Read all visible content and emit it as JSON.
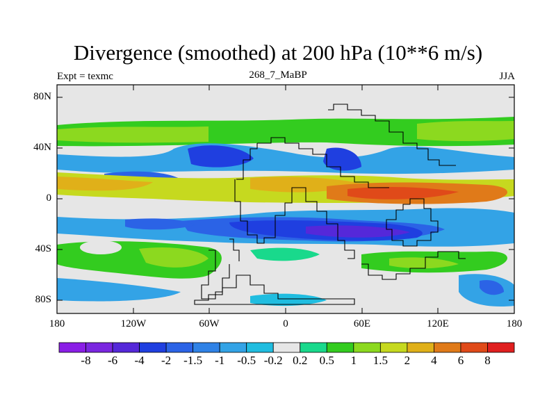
{
  "title": "Divergence (smoothed) at 200 hPa (10**6 m/s)",
  "subtitle_left": "Expt = texmc",
  "subtitle_center": "268_7_MaBP",
  "subtitle_right": "JJA",
  "lat_labels": [
    "80N",
    "40N",
    "0",
    "40S",
    "80S"
  ],
  "lon_labels": [
    "180",
    "120W",
    "60W",
    "0",
    "60E",
    "120E",
    "180"
  ],
  "colorbar": {
    "labels": [
      "-8",
      "-6",
      "-4",
      "-2",
      "-1.5",
      "-1",
      "-0.5",
      "-0.2",
      "0.2",
      "0.5",
      "1",
      "1.5",
      "2",
      "4",
      "6",
      "8"
    ],
    "colors": [
      "#8a1ee6",
      "#7a26e0",
      "#5528d9",
      "#1f3fe0",
      "#2b63e6",
      "#2f82e6",
      "#33a3e6",
      "#20bde0",
      "#e6e6e6",
      "#19d98c",
      "#33cc1f",
      "#8cd91f",
      "#c6d91f",
      "#e0b019",
      "#e07a19",
      "#e04a19",
      "#e01f1f"
    ]
  },
  "chart_data": {
    "type": "heatmap",
    "title": "Divergence (smoothed) at 200 hPa (10**6 m/s)",
    "units": "10**6 m/s",
    "projection": "cylindrical equidistant",
    "xlim": [
      -180,
      180
    ],
    "ylim": [
      -90,
      90
    ],
    "levels": [
      -8,
      -6,
      -4,
      -2,
      -1.5,
      -1,
      -0.5,
      -0.2,
      0.2,
      0.5,
      1,
      1.5,
      2,
      4,
      6,
      8
    ],
    "zonal_bands": [
      {
        "lat_range": [
          50,
          70
        ],
        "sign": "positive",
        "approx_value": 0.8,
        "note": "green band across mid-high northern latitudes"
      },
      {
        "lat_range": [
          25,
          45
        ],
        "sign": "negative",
        "approx_value": -1.5,
        "note": "blue band, strongest over N. Pacific / W. Asia"
      },
      {
        "lat_range": [
          0,
          20
        ],
        "sign": "positive",
        "approx_value": 2.5,
        "note": "orange ITCZ band, strongest near 60E-150E"
      },
      {
        "lat_range": [
          -40,
          -10
        ],
        "sign": "negative",
        "approx_value": -2.5,
        "note": "deep blue band over S. America to Australia"
      },
      {
        "lat_range": [
          -60,
          -40
        ],
        "sign": "positive",
        "approx_value": 0.8,
        "note": "green band over southern oceans"
      },
      {
        "lat_range": [
          -85,
          -70
        ],
        "sign": "negative",
        "approx_value": -0.8,
        "note": "blue patches near Antarctica"
      }
    ]
  }
}
